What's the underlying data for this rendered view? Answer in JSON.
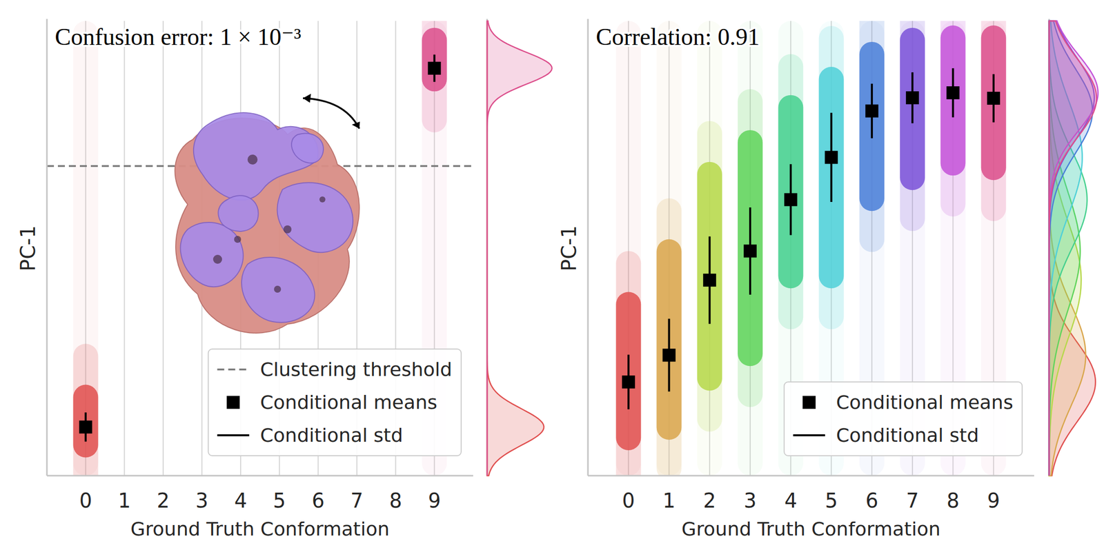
{
  "chart_data": [
    {
      "type": "strip",
      "annotation": "Confusion error: 1 × 10⁻³",
      "xlabel": "Ground Truth Conformation",
      "ylabel": "PC-1",
      "xlim": [
        -1,
        10
      ],
      "xticks": [
        0,
        1,
        2,
        3,
        4,
        5,
        6,
        7,
        8,
        9
      ],
      "ylim": [
        0,
        1
      ],
      "yticks": [],
      "tick_labels": "x",
      "grid": true,
      "legend": "lower right",
      "threshold": {
        "value": 0.681,
        "label": "Clustering threshold"
      },
      "series": [
        {
          "name": "Conditional means",
          "std_name": "Conditional std",
          "x": [
            0,
            9
          ],
          "values": [
            0.107,
            0.896
          ],
          "std": [
            0.032,
            0.03
          ],
          "lower": [
            0.04,
            0.845
          ],
          "upper": [
            0.2,
            0.985
          ],
          "colors": [
            "#e0504f",
            "#dc4f8c"
          ]
        }
      ]
    },
    {
      "type": "strip",
      "annotation": "Correlation: 0.91",
      "xlabel": "Ground Truth Conformation",
      "ylabel": "PC-1",
      "xlim": [
        -1,
        10
      ],
      "xticks": [
        0,
        1,
        2,
        3,
        4,
        5,
        6,
        7,
        8,
        9
      ],
      "ylim": [
        0,
        1
      ],
      "yticks": [],
      "tick_labels": "x",
      "grid": true,
      "legend": "lower right",
      "series": [
        {
          "name": "Conditional means",
          "std_name": "Conditional std",
          "x": [
            0,
            1,
            2,
            3,
            4,
            5,
            6,
            7,
            8,
            9
          ],
          "values": [
            0.206,
            0.265,
            0.43,
            0.494,
            0.607,
            0.7,
            0.802,
            0.831,
            0.842,
            0.83
          ],
          "std": [
            0.06,
            0.08,
            0.096,
            0.096,
            0.078,
            0.098,
            0.06,
            0.056,
            0.054,
            0.053
          ],
          "lower": [
            0.056,
            0.079,
            0.187,
            0.241,
            0.412,
            0.412,
            0.582,
            0.628,
            0.66,
            0.65
          ],
          "upper": [
            0.404,
            0.52,
            0.69,
            0.76,
            0.837,
            0.899,
            0.954,
            0.985,
            0.99,
            0.99
          ],
          "colors": [
            "#e0504f",
            "#d9a64c",
            "#b6d84a",
            "#5fd45a",
            "#45d08e",
            "#4fd0d8",
            "#4a7fd8",
            "#7a52d8",
            "#c452d8",
            "#dc4f8c"
          ]
        }
      ]
    }
  ]
}
